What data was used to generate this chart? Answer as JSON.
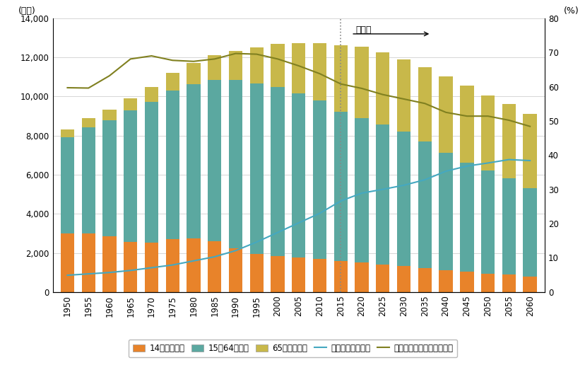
{
  "years": [
    1950,
    1955,
    1960,
    1965,
    1970,
    1975,
    1980,
    1985,
    1990,
    1995,
    2000,
    2005,
    2010,
    2015,
    2020,
    2025,
    2030,
    2035,
    2040,
    2045,
    2050,
    2055,
    2060
  ],
  "pop_under15": [
    2979,
    3012,
    2843,
    2553,
    2515,
    2722,
    2751,
    2603,
    2249,
    1955,
    1847,
    1752,
    1684,
    1595,
    1503,
    1407,
    1321,
    1213,
    1128,
    1046,
    951,
    880,
    796
  ],
  "pop_15to64": [
    4933,
    5398,
    5948,
    6744,
    7212,
    7581,
    7883,
    8251,
    8590,
    8726,
    8622,
    8409,
    8103,
    7629,
    7406,
    7170,
    6875,
    6494,
    5978,
    5583,
    5275,
    4930,
    4529
  ],
  "pop_over65": [
    416,
    479,
    539,
    624,
    739,
    887,
    1065,
    1247,
    1489,
    1828,
    2204,
    2576,
    2948,
    3387,
    3619,
    3677,
    3716,
    3782,
    3921,
    3935,
    3841,
    3793,
    3795
  ],
  "aging_rate": [
    4.9,
    5.3,
    5.7,
    6.3,
    7.1,
    7.9,
    9.1,
    10.3,
    12.1,
    14.6,
    17.4,
    20.2,
    23.0,
    26.6,
    28.9,
    30.0,
    31.2,
    32.8,
    35.3,
    36.8,
    37.7,
    38.7,
    38.4
  ],
  "working_ratio": [
    59.7,
    59.6,
    63.2,
    68.1,
    69.0,
    67.7,
    67.4,
    68.1,
    69.7,
    69.5,
    68.1,
    66.1,
    63.8,
    60.8,
    59.5,
    57.7,
    56.4,
    55.1,
    52.5,
    51.4,
    51.4,
    50.2,
    48.4
  ],
  "forecast_year": 2015,
  "bar_color_under15": "#e8832a",
  "bar_color_15to64": "#5ba8a0",
  "bar_color_over65": "#c8b84a",
  "line_color_aging": "#45a8c0",
  "line_color_working": "#808020",
  "ylim_left": [
    0,
    14000
  ],
  "ylim_right": [
    0,
    80
  ],
  "ylabel_left": "(万人)",
  "ylabel_right": "(%)",
  "yticks_left": [
    0,
    2000,
    4000,
    6000,
    8000,
    10000,
    12000,
    14000
  ],
  "ytick_labels_left": [
    "0",
    "2,000",
    "4,000",
    "6,000",
    "8,000",
    "10,000",
    "12,000",
    "14,000"
  ],
  "yticks_right": [
    0,
    10,
    20,
    30,
    40,
    50,
    60,
    70,
    80
  ],
  "annotation_text": "予測値",
  "legend_labels": [
    "14歳以下人口",
    "15～64歳人口",
    "65歳以上人口",
    "高齢化率（右軸）",
    "生産年齢人口割合（右軸）"
  ],
  "bg_color": "#ffffff",
  "grid_color": "#d0d0d0"
}
